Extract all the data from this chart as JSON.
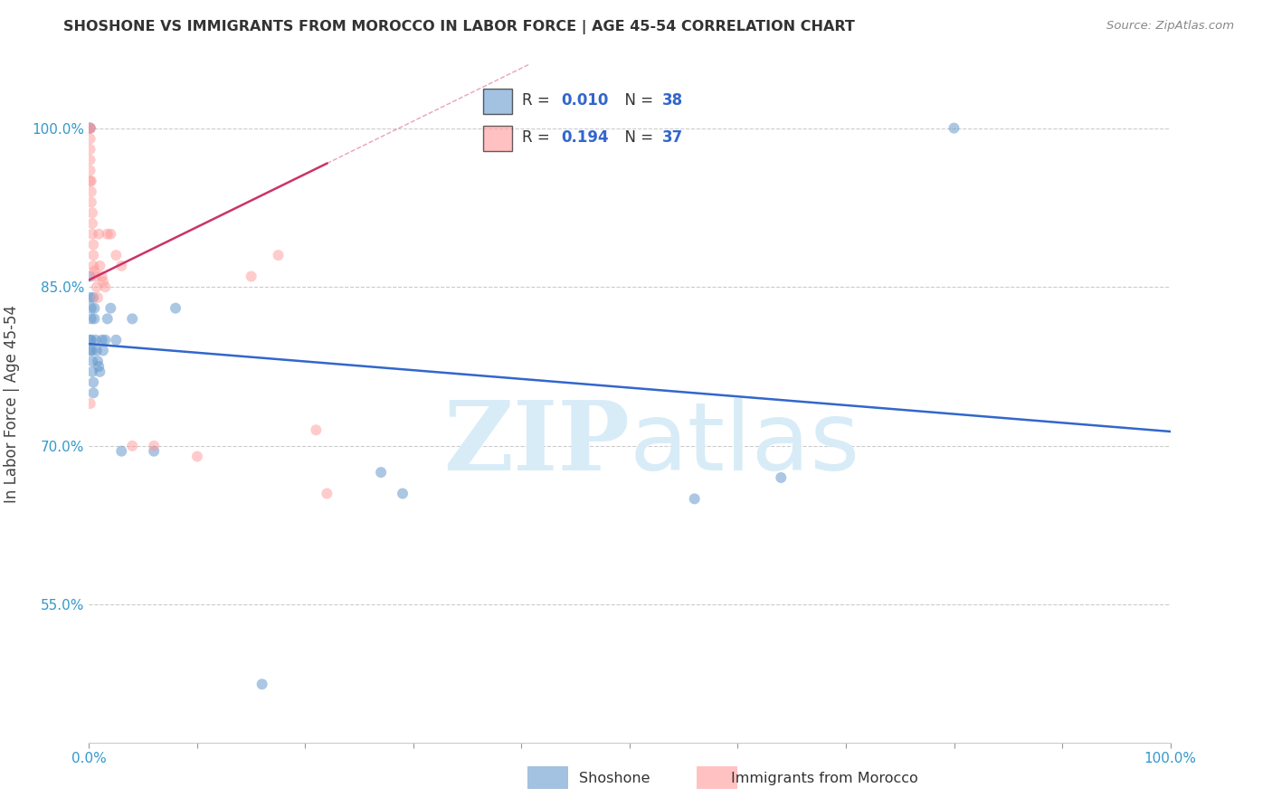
{
  "title": "SHOSHONE VS IMMIGRANTS FROM MOROCCO IN LABOR FORCE | AGE 45-54 CORRELATION CHART",
  "source": "Source: ZipAtlas.com",
  "ylabel": "In Labor Force | Age 45-54",
  "xlim": [
    0.0,
    1.0
  ],
  "ylim": [
    0.42,
    1.06
  ],
  "yticks": [
    0.55,
    0.7,
    0.85,
    1.0
  ],
  "ytick_labels": [
    "55.0%",
    "70.0%",
    "85.0%",
    "100.0%"
  ],
  "xticks": [
    0.0,
    0.1,
    0.2,
    0.3,
    0.4,
    0.5,
    0.6,
    0.7,
    0.8,
    0.9,
    1.0
  ],
  "xtick_labels": [
    "0.0%",
    "",
    "",
    "",
    "",
    "",
    "",
    "",
    "",
    "",
    "100.0%"
  ],
  "shoshone_color": "#6699cc",
  "morocco_color": "#ff9999",
  "R_shoshone": "0.010",
  "N_shoshone": "38",
  "R_morocco": "0.194",
  "N_morocco": "37",
  "trend_shoshone_color": "#3366cc",
  "trend_morocco_color": "#cc3366",
  "watermark_color": "#d8ecf8",
  "shoshone_x": [
    0.001,
    0.001,
    0.001,
    0.001,
    0.001,
    0.001,
    0.002,
    0.002,
    0.002,
    0.003,
    0.003,
    0.003,
    0.004,
    0.004,
    0.004,
    0.005,
    0.005,
    0.006,
    0.007,
    0.008,
    0.009,
    0.01,
    0.012,
    0.013,
    0.015,
    0.017,
    0.02,
    0.025,
    0.03,
    0.04,
    0.06,
    0.08,
    0.16,
    0.27,
    0.29,
    0.56,
    0.64,
    0.8
  ],
  "shoshone_y": [
    0.8,
    0.79,
    1.0,
    1.0,
    0.86,
    0.84,
    0.83,
    0.82,
    0.8,
    0.79,
    0.78,
    0.77,
    0.76,
    0.75,
    0.84,
    0.83,
    0.82,
    0.8,
    0.79,
    0.78,
    0.775,
    0.77,
    0.8,
    0.79,
    0.8,
    0.82,
    0.83,
    0.8,
    0.695,
    0.82,
    0.695,
    0.83,
    0.475,
    0.675,
    0.655,
    0.65,
    0.67,
    1.0
  ],
  "morocco_x": [
    0.001,
    0.001,
    0.001,
    0.001,
    0.001,
    0.001,
    0.001,
    0.002,
    0.002,
    0.002,
    0.003,
    0.003,
    0.003,
    0.004,
    0.004,
    0.004,
    0.005,
    0.006,
    0.007,
    0.008,
    0.009,
    0.01,
    0.012,
    0.013,
    0.015,
    0.017,
    0.02,
    0.025,
    0.03,
    0.04,
    0.06,
    0.1,
    0.15,
    0.175,
    0.21,
    0.22,
    0.001
  ],
  "morocco_y": [
    1.0,
    1.0,
    0.99,
    0.98,
    0.97,
    0.96,
    0.95,
    0.95,
    0.94,
    0.93,
    0.92,
    0.91,
    0.9,
    0.89,
    0.88,
    0.87,
    0.865,
    0.86,
    0.85,
    0.84,
    0.9,
    0.87,
    0.86,
    0.855,
    0.85,
    0.9,
    0.9,
    0.88,
    0.87,
    0.7,
    0.7,
    0.69,
    0.86,
    0.88,
    0.715,
    0.655,
    0.74
  ],
  "marker_size": 75,
  "figsize": [
    14.06,
    8.92
  ],
  "dpi": 100
}
